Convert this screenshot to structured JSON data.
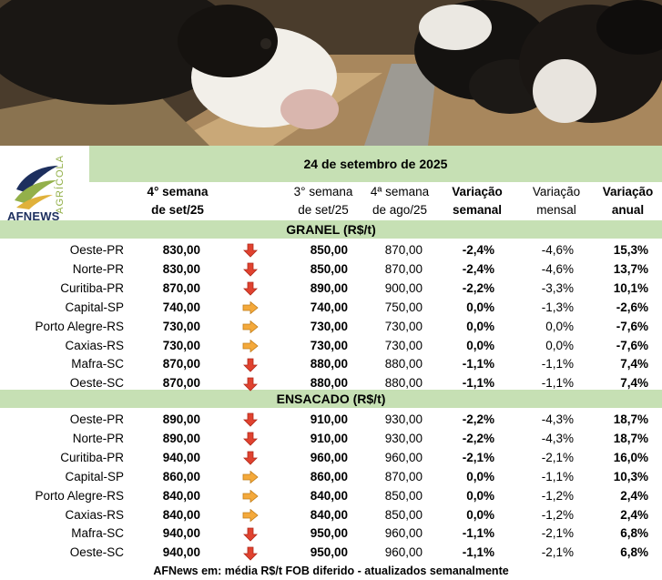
{
  "date_title": "24 de setembro de 2025",
  "logo": {
    "brand": "AFNEWS",
    "tag": "AGRÍCOLA"
  },
  "header": {
    "current": [
      "4° semana",
      "de set/25"
    ],
    "previous": [
      "3° semana",
      "de set/25"
    ],
    "month_ago": [
      "4ª semana",
      "de ago/25"
    ],
    "weekly": [
      "Variação",
      "semanal"
    ],
    "monthly": [
      "Variação",
      "mensal"
    ],
    "annual": [
      "Variação",
      "anual"
    ]
  },
  "sections": [
    {
      "title": "GRANEL (R$/t)",
      "rows": [
        {
          "city": "Oeste-PR",
          "current": "830,00",
          "trend": "down",
          "previous": "850,00",
          "month_ago": "870,00",
          "weekly": "-2,4%",
          "monthly": "-4,6%",
          "annual": "15,3%"
        },
        {
          "city": "Norte-PR",
          "current": "830,00",
          "trend": "down",
          "previous": "850,00",
          "month_ago": "870,00",
          "weekly": "-2,4%",
          "monthly": "-4,6%",
          "annual": "13,7%"
        },
        {
          "city": "Curitiba-PR",
          "current": "870,00",
          "trend": "down",
          "previous": "890,00",
          "month_ago": "900,00",
          "weekly": "-2,2%",
          "monthly": "-3,3%",
          "annual": "10,1%"
        },
        {
          "city": "Capital-SP",
          "current": "740,00",
          "trend": "stable",
          "previous": "740,00",
          "month_ago": "750,00",
          "weekly": "0,0%",
          "monthly": "-1,3%",
          "annual": "-2,6%"
        },
        {
          "city": "Porto Alegre-RS",
          "current": "730,00",
          "trend": "stable",
          "previous": "730,00",
          "month_ago": "730,00",
          "weekly": "0,0%",
          "monthly": "0,0%",
          "annual": "-7,6%"
        },
        {
          "city": "Caxias-RS",
          "current": "730,00",
          "trend": "stable",
          "previous": "730,00",
          "month_ago": "730,00",
          "weekly": "0,0%",
          "monthly": "0,0%",
          "annual": "-7,6%"
        },
        {
          "city": "Mafra-SC",
          "current": "870,00",
          "trend": "down",
          "previous": "880,00",
          "month_ago": "880,00",
          "weekly": "-1,1%",
          "monthly": "-1,1%",
          "annual": "7,4%"
        },
        {
          "city": "Oeste-SC",
          "current": "870,00",
          "trend": "down",
          "previous": "880,00",
          "month_ago": "880,00",
          "weekly": "-1,1%",
          "monthly": "-1,1%",
          "annual": "7,4%"
        }
      ]
    },
    {
      "title": "ENSACADO (R$/t)",
      "rows": [
        {
          "city": "Oeste-PR",
          "current": "890,00",
          "trend": "down",
          "previous": "910,00",
          "month_ago": "930,00",
          "weekly": "-2,2%",
          "monthly": "-4,3%",
          "annual": "18,7%"
        },
        {
          "city": "Norte-PR",
          "current": "890,00",
          "trend": "down",
          "previous": "910,00",
          "month_ago": "930,00",
          "weekly": "-2,2%",
          "monthly": "-4,3%",
          "annual": "18,7%"
        },
        {
          "city": "Curitiba-PR",
          "current": "940,00",
          "trend": "down",
          "previous": "960,00",
          "month_ago": "960,00",
          "weekly": "-2,1%",
          "monthly": "-2,1%",
          "annual": "16,0%"
        },
        {
          "city": "Capital-SP",
          "current": "860,00",
          "trend": "stable",
          "previous": "860,00",
          "month_ago": "870,00",
          "weekly": "0,0%",
          "monthly": "-1,1%",
          "annual": "10,3%"
        },
        {
          "city": "Porto Alegre-RS",
          "current": "840,00",
          "trend": "stable",
          "previous": "840,00",
          "month_ago": "850,00",
          "weekly": "0,0%",
          "monthly": "-1,2%",
          "annual": "2,4%"
        },
        {
          "city": "Caxias-RS",
          "current": "840,00",
          "trend": "stable",
          "previous": "840,00",
          "month_ago": "850,00",
          "weekly": "0,0%",
          "monthly": "-1,2%",
          "annual": "2,4%"
        },
        {
          "city": "Mafra-SC",
          "current": "940,00",
          "trend": "down",
          "previous": "950,00",
          "month_ago": "960,00",
          "weekly": "-1,1%",
          "monthly": "-2,1%",
          "annual": "6,8%"
        },
        {
          "city": "Oeste-SC",
          "current": "940,00",
          "trend": "down",
          "previous": "950,00",
          "month_ago": "960,00",
          "weekly": "-1,1%",
          "monthly": "-2,1%",
          "annual": "6,8%"
        }
      ]
    }
  ],
  "footer": "AFNews em: média R$/t FOB diferido - atualizados semanalmente",
  "colors": {
    "green_band": "#c6e0b4",
    "arrow_down": "#e0422f",
    "arrow_stable": "#f4a93b",
    "brand_navy": "#1d2f5e",
    "brand_green": "#93b04a"
  }
}
